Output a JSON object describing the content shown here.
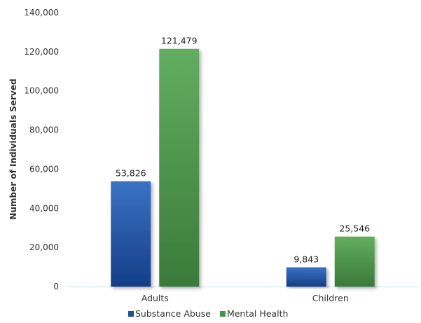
{
  "chart_data": {
    "type": "bar",
    "categories": [
      "Adults",
      "Children"
    ],
    "series": [
      {
        "name": "Substance Abuse",
        "values": [
          53826,
          9843
        ],
        "labels": [
          "53,826",
          "9,843"
        ],
        "color": "#1f4e9a"
      },
      {
        "name": "Mental Health",
        "values": [
          121479,
          25546
        ],
        "labels": [
          "121,479",
          "25,546"
        ],
        "color": "#4a9448"
      }
    ],
    "ylabel": "Number of Individuals Served",
    "xlabel": "",
    "ylim": [
      0,
      140000
    ],
    "yticks": [
      0,
      20000,
      40000,
      60000,
      80000,
      100000,
      120000,
      140000
    ],
    "ytick_labels": [
      "0",
      "20,000",
      "40,000",
      "60,000",
      "80,000",
      "100,000",
      "120,000",
      "140,000"
    ],
    "grid": false,
    "legend_position": "bottom-center"
  }
}
